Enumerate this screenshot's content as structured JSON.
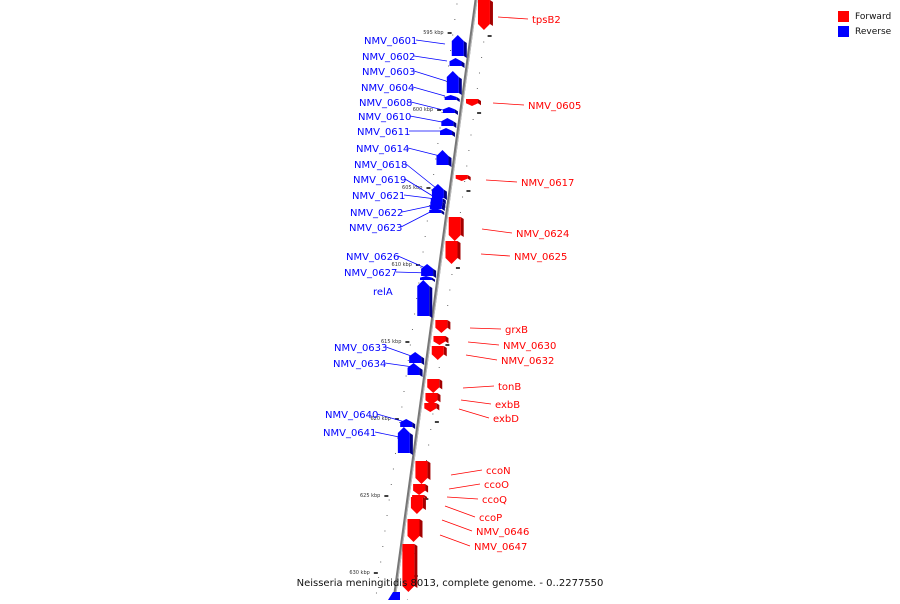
{
  "legend": {
    "forward": {
      "label": "Forward",
      "color": "#ff0000"
    },
    "reverse": {
      "label": "Reverse",
      "color": "#0000ff"
    }
  },
  "caption": "Neisseria meningitidis 8013, complete genome. - 0..2277550",
  "axis": {
    "tick_labels": [
      "595 kbp",
      "600 kbp",
      "605 kbp",
      "610 kbp",
      "615 kbp",
      "620 kbp",
      "625 kbp",
      "630 kbp"
    ]
  },
  "genes": [
    {
      "label": "tpsB2",
      "strand": "forward"
    },
    {
      "label": "NMV_0601",
      "strand": "reverse"
    },
    {
      "label": "NMV_0602",
      "strand": "reverse"
    },
    {
      "label": "NMV_0603",
      "strand": "reverse"
    },
    {
      "label": "NMV_0604",
      "strand": "reverse"
    },
    {
      "label": "NMV_0605",
      "strand": "forward"
    },
    {
      "label": "NMV_0608",
      "strand": "reverse"
    },
    {
      "label": "NMV_0610",
      "strand": "reverse"
    },
    {
      "label": "NMV_0611",
      "strand": "reverse"
    },
    {
      "label": "NMV_0614",
      "strand": "reverse"
    },
    {
      "label": "NMV_0617",
      "strand": "forward"
    },
    {
      "label": "NMV_0618",
      "strand": "reverse"
    },
    {
      "label": "NMV_0619",
      "strand": "reverse"
    },
    {
      "label": "NMV_0621",
      "strand": "reverse"
    },
    {
      "label": "NMV_0622",
      "strand": "reverse"
    },
    {
      "label": "NMV_0623",
      "strand": "reverse"
    },
    {
      "label": "NMV_0624",
      "strand": "forward"
    },
    {
      "label": "NMV_0625",
      "strand": "forward"
    },
    {
      "label": "NMV_0626",
      "strand": "reverse"
    },
    {
      "label": "NMV_0627",
      "strand": "reverse"
    },
    {
      "label": "relA",
      "strand": "reverse"
    },
    {
      "label": "grxB",
      "strand": "forward"
    },
    {
      "label": "NMV_0630",
      "strand": "forward"
    },
    {
      "label": "NMV_0632",
      "strand": "forward"
    },
    {
      "label": "NMV_0633",
      "strand": "reverse"
    },
    {
      "label": "NMV_0634",
      "strand": "reverse"
    },
    {
      "label": "tonB",
      "strand": "forward"
    },
    {
      "label": "exbB",
      "strand": "forward"
    },
    {
      "label": "exbD",
      "strand": "forward"
    },
    {
      "label": "NMV_0640",
      "strand": "reverse"
    },
    {
      "label": "NMV_0641",
      "strand": "reverse"
    },
    {
      "label": "ccoN",
      "strand": "forward"
    },
    {
      "label": "ccoO",
      "strand": "forward"
    },
    {
      "label": "ccoQ",
      "strand": "forward"
    },
    {
      "label": "ccoP",
      "strand": "forward"
    },
    {
      "label": "NMV_0646",
      "strand": "forward"
    },
    {
      "label": "NMV_0647",
      "strand": "forward"
    }
  ]
}
